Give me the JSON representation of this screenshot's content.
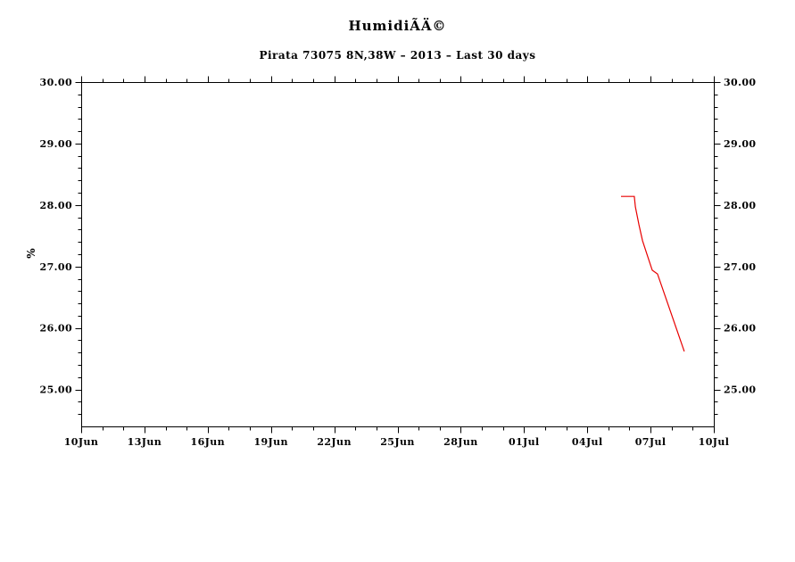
{
  "page": {
    "background": "#ffffff"
  },
  "chart_data": {
    "type": "line",
    "title": "HumidiÃÄ©",
    "subtitle": "Pirata 73075 8N,38W – 2013 – Last 30 days",
    "ylabel": "%",
    "grid": false,
    "legend": false,
    "x_axis": {
      "tick_labels": [
        "10Jun",
        "13Jun",
        "16Jun",
        "19Jun",
        "22Jun",
        "25Jun",
        "28Jun",
        "01Jul",
        "04Jul",
        "07Jul",
        "10Jul"
      ],
      "range_days": [
        0,
        30
      ],
      "major_every_days": 3,
      "minor_every_days": 1,
      "x_is_days_after": "10 Jun 2013"
    },
    "y_axis": {
      "tick_labels": [
        "30.00",
        "29.00",
        "28.00",
        "27.00",
        "26.00",
        "25.00"
      ],
      "tick_values": [
        30,
        29,
        28,
        27,
        26,
        25
      ],
      "minor_step": 0.2,
      "range": [
        24.4,
        30.0
      ],
      "unit": "%"
    },
    "series": [
      {
        "name": "relative-humidity",
        "color": "#e80000",
        "points_day_value": [
          [
            25.6,
            28.14
          ],
          [
            26.23,
            28.14
          ],
          [
            26.28,
            27.97
          ],
          [
            26.45,
            27.68
          ],
          [
            26.62,
            27.42
          ],
          [
            26.87,
            27.16
          ],
          [
            27.08,
            26.94
          ],
          [
            27.33,
            26.88
          ],
          [
            28.6,
            25.62
          ]
        ]
      }
    ],
    "axis_color": "#000000"
  }
}
